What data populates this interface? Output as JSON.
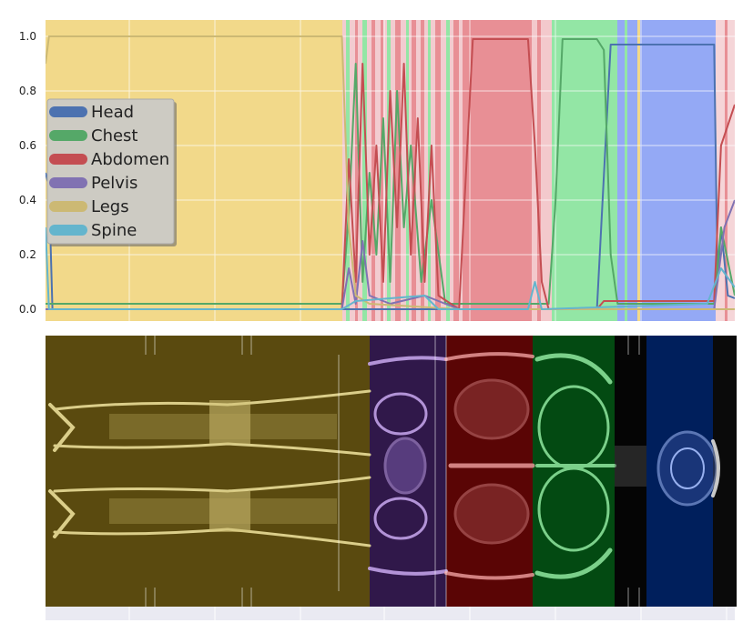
{
  "chart_data": [
    {
      "type": "line",
      "title": "",
      "xlabel": "",
      "ylabel": "",
      "ylim": [
        0,
        1.0
      ],
      "yticks": [
        "0.0",
        "0.2",
        "0.4",
        "0.6",
        "0.8",
        "1.0"
      ],
      "xlim": [
        0,
        1
      ],
      "grid": true,
      "legend_position": "left",
      "series": [
        {
          "name": "Head",
          "color": "#4c72b0",
          "points": [
            [
              0,
              0.5
            ],
            [
              0.005,
              0.45
            ],
            [
              0.01,
              0.0
            ],
            [
              0.8,
              0.0
            ],
            [
              0.82,
              0.97
            ],
            [
              0.97,
              0.97
            ],
            [
              0.975,
              0.1
            ],
            [
              0.98,
              0.3
            ],
            [
              0.99,
              0.05
            ],
            [
              1,
              0.04
            ]
          ]
        },
        {
          "name": "Chest",
          "color": "#55a868",
          "points": [
            [
              0,
              0.02
            ],
            [
              0.43,
              0.02
            ],
            [
              0.44,
              0.35
            ],
            [
              0.45,
              0.9
            ],
            [
              0.46,
              0.1
            ],
            [
              0.47,
              0.5
            ],
            [
              0.48,
              0.2
            ],
            [
              0.49,
              0.7
            ],
            [
              0.5,
              0.1
            ],
            [
              0.51,
              0.8
            ],
            [
              0.52,
              0.3
            ],
            [
              0.53,
              0.6
            ],
            [
              0.545,
              0.1
            ],
            [
              0.56,
              0.4
            ],
            [
              0.58,
              0.02
            ],
            [
              0.73,
              0.02
            ],
            [
              0.74,
              0.4
            ],
            [
              0.75,
              0.99
            ],
            [
              0.8,
              0.99
            ],
            [
              0.81,
              0.95
            ],
            [
              0.82,
              0.2
            ],
            [
              0.83,
              0.02
            ],
            [
              0.97,
              0.02
            ],
            [
              0.98,
              0.3
            ],
            [
              1,
              0.05
            ]
          ]
        },
        {
          "name": "Abdomen",
          "color": "#c44e52",
          "points": [
            [
              0,
              0.0
            ],
            [
              0.43,
              0.0
            ],
            [
              0.44,
              0.55
            ],
            [
              0.45,
              0.1
            ],
            [
              0.46,
              0.9
            ],
            [
              0.47,
              0.2
            ],
            [
              0.48,
              0.6
            ],
            [
              0.49,
              0.1
            ],
            [
              0.5,
              0.8
            ],
            [
              0.51,
              0.3
            ],
            [
              0.52,
              0.9
            ],
            [
              0.53,
              0.2
            ],
            [
              0.54,
              0.7
            ],
            [
              0.55,
              0.1
            ],
            [
              0.56,
              0.6
            ],
            [
              0.57,
              0.05
            ],
            [
              0.6,
              0.0
            ],
            [
              0.61,
              0.5
            ],
            [
              0.62,
              0.99
            ],
            [
              0.7,
              0.99
            ],
            [
              0.71,
              0.6
            ],
            [
              0.72,
              0.1
            ],
            [
              0.73,
              0.0
            ],
            [
              0.8,
              0.0
            ],
            [
              0.81,
              0.03
            ],
            [
              0.97,
              0.03
            ],
            [
              0.98,
              0.6
            ],
            [
              1,
              0.75
            ]
          ]
        },
        {
          "name": "Pelvis",
          "color": "#8172b2",
          "points": [
            [
              0,
              0.0
            ],
            [
              0.43,
              0.0
            ],
            [
              0.44,
              0.15
            ],
            [
              0.45,
              0.02
            ],
            [
              0.46,
              0.25
            ],
            [
              0.47,
              0.05
            ],
            [
              0.5,
              0.02
            ],
            [
              0.55,
              0.05
            ],
            [
              0.6,
              0.0
            ],
            [
              0.97,
              0.0
            ],
            [
              0.985,
              0.3
            ],
            [
              1,
              0.4
            ]
          ]
        },
        {
          "name": "Legs",
          "color": "#ccb974",
          "points": [
            [
              0,
              0.9
            ],
            [
              0.005,
              1.0
            ],
            [
              0.02,
              1.0
            ],
            [
              0.43,
              1.0
            ],
            [
              0.44,
              0.3
            ],
            [
              0.45,
              0.05
            ],
            [
              0.47,
              0.02
            ],
            [
              0.6,
              0.0
            ],
            [
              1,
              0.0
            ]
          ]
        },
        {
          "name": "Spine",
          "color": "#64b5cd",
          "points": [
            [
              0,
              0.3
            ],
            [
              0.005,
              0.0
            ],
            [
              0.43,
              0.0
            ],
            [
              0.45,
              0.03
            ],
            [
              0.55,
              0.05
            ],
            [
              0.57,
              0.0
            ],
            [
              0.7,
              0.0
            ],
            [
              0.71,
              0.1
            ],
            [
              0.72,
              0.0
            ],
            [
              0.96,
              0.02
            ],
            [
              0.98,
              0.15
            ],
            [
              1,
              0.08
            ]
          ]
        }
      ],
      "region_colors": [
        "#f2d98a",
        "#e88f95",
        "#93e6a5",
        "#94a9f5"
      ]
    },
    {
      "type": "image",
      "description_only": false,
      "segments": [
        {
          "name": "Legs",
          "color": "#5a4a0f"
        },
        {
          "name": "Pelvis",
          "color": "#30184a"
        },
        {
          "name": "Abdomen",
          "color": "#5a0505"
        },
        {
          "name": "Chest",
          "color": "#034a12"
        },
        {
          "name": "Head",
          "color": "#001f5c"
        }
      ]
    }
  ],
  "legend": {
    "items": [
      {
        "label": "Head",
        "color": "#4c72b0"
      },
      {
        "label": "Chest",
        "color": "#55a868"
      },
      {
        "label": "Abdomen",
        "color": "#c44e52"
      },
      {
        "label": "Pelvis",
        "color": "#8172b2"
      },
      {
        "label": "Legs",
        "color": "#ccb974"
      },
      {
        "label": "Spine",
        "color": "#64b5cd"
      }
    ]
  }
}
